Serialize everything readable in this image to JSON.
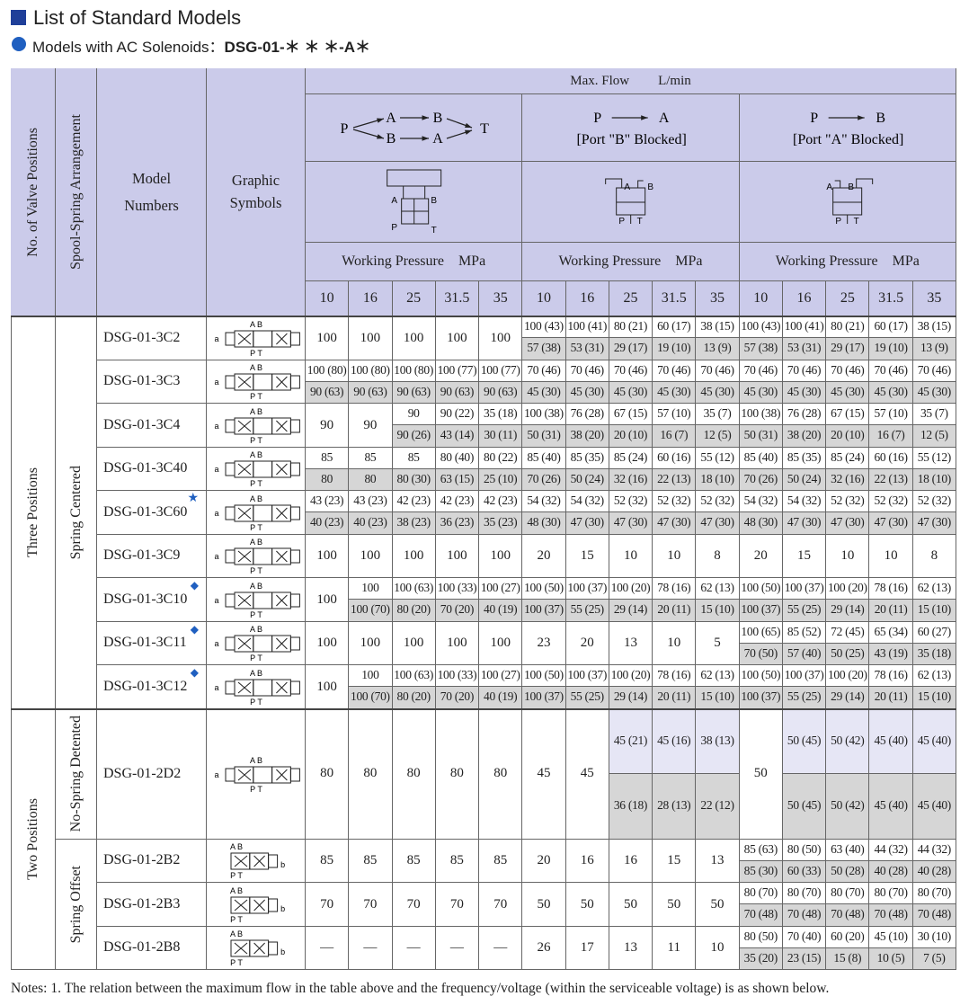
{
  "header": {
    "title": "List of Standard Models",
    "subtitle_prefix": "Models with AC Solenoids：",
    "subtitle_code": "DSG-01-＊ ＊ ＊-A＊"
  },
  "table": {
    "col_headers": {
      "positions": "No. of Valve Positions",
      "spool": "Spool-Spring Arrangement",
      "model": "Model Numbers",
      "graphic": "Graphic Symbols",
      "max_flow": "Max. Flow",
      "unit": "L/min"
    },
    "groups": [
      {
        "flow": [
          "P",
          "A",
          "B",
          "B",
          "A",
          "T"
        ],
        "symbol": [
          "A",
          "B",
          "P",
          "T"
        ],
        "pressure_label": "Working Pressure",
        "pressure_unit": "MPa",
        "pressures": [
          "10",
          "16",
          "25",
          "31.5",
          "35"
        ]
      },
      {
        "flow": [
          "P",
          "A",
          "[Port \"B\" Blocked]"
        ],
        "symbol": [
          "A",
          "B",
          "P",
          "T"
        ],
        "pressure_label": "Working Pressure",
        "pressure_unit": "MPa",
        "pressures": [
          "10",
          "16",
          "25",
          "31.5",
          "35"
        ]
      },
      {
        "flow": [
          "P",
          "B",
          "[Port \"A\" Blocked]"
        ],
        "symbol": [
          "A",
          "B",
          "P",
          "T"
        ],
        "pressure_label": "Working Pressure",
        "pressure_unit": "MPa",
        "pressures": [
          "10",
          "16",
          "25",
          "31.5",
          "35"
        ]
      }
    ],
    "sections": [
      {
        "label": "Three Positions",
        "arrangements": [
          {
            "label": "Spring Centered",
            "rows": [
              {
                "model": "DSG-01-3C2",
                "symbol": [
                  "A B",
                  "P T",
                  "a",
                  "b"
                ],
                "cells": [
                  "100",
                  "100",
                  "100",
                  "100",
                  "100",
                  [
                    "100 (43)",
                    "57 (38)"
                  ],
                  [
                    "100 (41)",
                    "53 (31)"
                  ],
                  [
                    "80 (21)",
                    "29 (17)"
                  ],
                  [
                    "60 (17)",
                    "19 (10)"
                  ],
                  [
                    "38 (15)",
                    "13 (9)"
                  ],
                  [
                    "100 (43)",
                    "57 (38)"
                  ],
                  [
                    "100 (41)",
                    "53 (31)"
                  ],
                  [
                    "80 (21)",
                    "29 (17)"
                  ],
                  [
                    "60 (17)",
                    "19 (10)"
                  ],
                  [
                    "38 (15)",
                    "13 (9)"
                  ]
                ]
              },
              {
                "model": "DSG-01-3C3",
                "symbol": [
                  "A B",
                  "P T",
                  "a",
                  "b"
                ],
                "cells": [
                  [
                    "100 (80)",
                    "90 (63)"
                  ],
                  [
                    "100 (80)",
                    "90 (63)"
                  ],
                  [
                    "100 (80)",
                    "90 (63)"
                  ],
                  [
                    "100 (77)",
                    "90 (63)"
                  ],
                  [
                    "100 (77)",
                    "90 (63)"
                  ],
                  [
                    "70 (46)",
                    "45 (30)"
                  ],
                  [
                    "70 (46)",
                    "45 (30)"
                  ],
                  [
                    "70 (46)",
                    "45 (30)"
                  ],
                  [
                    "70 (46)",
                    "45 (30)"
                  ],
                  [
                    "70 (46)",
                    "45 (30)"
                  ],
                  [
                    "70 (46)",
                    "45 (30)"
                  ],
                  [
                    "70 (46)",
                    "45 (30)"
                  ],
                  [
                    "70 (46)",
                    "45 (30)"
                  ],
                  [
                    "70 (46)",
                    "45 (30)"
                  ],
                  [
                    "70 (46)",
                    "45 (30)"
                  ]
                ]
              },
              {
                "model": "DSG-01-3C4",
                "symbol": [
                  "A B",
                  "P T",
                  "a",
                  "b"
                ],
                "cells": [
                  "90",
                  "90",
                  [
                    "90",
                    "90 (26)"
                  ],
                  [
                    "90 (22)",
                    "43 (14)"
                  ],
                  [
                    "35 (18)",
                    "30 (11)"
                  ],
                  [
                    "100 (38)",
                    "50 (31)"
                  ],
                  [
                    "76 (28)",
                    "38 (20)"
                  ],
                  [
                    "67 (15)",
                    "20 (10)"
                  ],
                  [
                    "57 (10)",
                    "16 (7)"
                  ],
                  [
                    "35 (7)",
                    "12 (5)"
                  ],
                  [
                    "100 (38)",
                    "50 (31)"
                  ],
                  [
                    "76 (28)",
                    "38 (20)"
                  ],
                  [
                    "67 (15)",
                    "20 (10)"
                  ],
                  [
                    "57 (10)",
                    "16 (7)"
                  ],
                  [
                    "35 (7)",
                    "12 (5)"
                  ]
                ]
              },
              {
                "model": "DSG-01-3C40",
                "symbol": [
                  "A B",
                  "P T",
                  "a",
                  "b"
                ],
                "cells": [
                  [
                    "85",
                    "80"
                  ],
                  [
                    "85",
                    "80"
                  ],
                  [
                    "85",
                    "80 (30)"
                  ],
                  [
                    "80 (40)",
                    "63 (15)"
                  ],
                  [
                    "80 (22)",
                    "25 (10)"
                  ],
                  [
                    "85 (40)",
                    "70 (26)"
                  ],
                  [
                    "85 (35)",
                    "50 (24)"
                  ],
                  [
                    "85 (24)",
                    "32 (16)"
                  ],
                  [
                    "60 (16)",
                    "22 (13)"
                  ],
                  [
                    "55 (12)",
                    "18 (10)"
                  ],
                  [
                    "85 (40)",
                    "70 (26)"
                  ],
                  [
                    "85 (35)",
                    "50 (24)"
                  ],
                  [
                    "85 (24)",
                    "32 (16)"
                  ],
                  [
                    "60 (16)",
                    "22 (13)"
                  ],
                  [
                    "55 (12)",
                    "18 (10)"
                  ]
                ]
              },
              {
                "model": "DSG-01-3C60",
                "mark": "★",
                "symbol": [
                  "A B",
                  "P T",
                  "a",
                  "b"
                ],
                "cells": [
                  [
                    "43 (23)",
                    "40 (23)"
                  ],
                  [
                    "43 (23)",
                    "40 (23)"
                  ],
                  [
                    "42 (23)",
                    "38 (23)"
                  ],
                  [
                    "42 (23)",
                    "36 (23)"
                  ],
                  [
                    "42 (23)",
                    "35 (23)"
                  ],
                  [
                    "54 (32)",
                    "48 (30)"
                  ],
                  [
                    "54 (32)",
                    "47 (30)"
                  ],
                  [
                    "52 (32)",
                    "47 (30)"
                  ],
                  [
                    "52 (32)",
                    "47 (30)"
                  ],
                  [
                    "52 (32)",
                    "47 (30)"
                  ],
                  [
                    "54 (32)",
                    "48 (30)"
                  ],
                  [
                    "54 (32)",
                    "47 (30)"
                  ],
                  [
                    "52 (32)",
                    "47 (30)"
                  ],
                  [
                    "52 (32)",
                    "47 (30)"
                  ],
                  [
                    "52 (32)",
                    "47 (30)"
                  ]
                ]
              },
              {
                "model": "DSG-01-3C9",
                "symbol": [
                  "A B",
                  "P T",
                  "a",
                  "b"
                ],
                "cells": [
                  "100",
                  "100",
                  "100",
                  "100",
                  "100",
                  "20",
                  "15",
                  "10",
                  "10",
                  "8",
                  "20",
                  "15",
                  "10",
                  "10",
                  "8"
                ]
              },
              {
                "model": "DSG-01-3C10",
                "mark": "◆",
                "symbol": [
                  "A B",
                  "P T",
                  "a",
                  "b"
                ],
                "cells": [
                  "100",
                  [
                    "100",
                    "100 (70)"
                  ],
                  [
                    "100 (63)",
                    "80 (20)"
                  ],
                  [
                    "100 (33)",
                    "70 (20)"
                  ],
                  [
                    "100 (27)",
                    "40 (19)"
                  ],
                  [
                    "100 (50)",
                    "100 (37)"
                  ],
                  [
                    "100 (37)",
                    "55 (25)"
                  ],
                  [
                    "100 (20)",
                    "29 (14)"
                  ],
                  [
                    "78 (16)",
                    "20 (11)"
                  ],
                  [
                    "62 (13)",
                    "15 (10)"
                  ],
                  [
                    "100 (50)",
                    "100 (37)"
                  ],
                  [
                    "100 (37)",
                    "55 (25)"
                  ],
                  [
                    "100 (20)",
                    "29 (14)"
                  ],
                  [
                    "78 (16)",
                    "20 (11)"
                  ],
                  [
                    "62 (13)",
                    "15 (10)"
                  ]
                ]
              },
              {
                "model": "DSG-01-3C11",
                "mark": "◆",
                "symbol": [
                  "A B",
                  "P T",
                  "a",
                  "b"
                ],
                "cells": [
                  "100",
                  "100",
                  "100",
                  "100",
                  "100",
                  "23",
                  "20",
                  "13",
                  "10",
                  "5",
                  [
                    "100 (65)",
                    "70 (50)"
                  ],
                  [
                    "85 (52)",
                    "57 (40)"
                  ],
                  [
                    "72 (45)",
                    "50 (25)"
                  ],
                  [
                    "65 (34)",
                    "43 (19)"
                  ],
                  [
                    "60 (27)",
                    "35 (18)"
                  ]
                ]
              },
              {
                "model": "DSG-01-3C12",
                "mark": "◆",
                "symbol": [
                  "A B",
                  "P T",
                  "a",
                  "b"
                ],
                "cells": [
                  "100",
                  [
                    "100",
                    "100 (70)"
                  ],
                  [
                    "100 (63)",
                    "80 (20)"
                  ],
                  [
                    "100 (33)",
                    "70 (20)"
                  ],
                  [
                    "100 (27)",
                    "40 (19)"
                  ],
                  [
                    "100 (50)",
                    "100 (37)"
                  ],
                  [
                    "100 (37)",
                    "55 (25)"
                  ],
                  [
                    "100 (20)",
                    "29 (14)"
                  ],
                  [
                    "78 (16)",
                    "20 (11)"
                  ],
                  [
                    "62 (13)",
                    "15 (10)"
                  ],
                  [
                    "100 (50)",
                    "100 (37)"
                  ],
                  [
                    "100 (37)",
                    "55 (25)"
                  ],
                  [
                    "100 (20)",
                    "29 (14)"
                  ],
                  [
                    "78 (16)",
                    "20 (11)"
                  ],
                  [
                    "62 (13)",
                    "15 (10)"
                  ]
                ]
              }
            ]
          }
        ]
      },
      {
        "label": "Two Positions",
        "arrangements": [
          {
            "label": "No-Spring Detented",
            "rows": [
              {
                "model": "DSG-01-2D2",
                "symbol": [
                  "A B",
                  "P T",
                  "a",
                  "b"
                ],
                "cells": [
                  "80",
                  "80",
                  "80",
                  "80",
                  "80",
                  "45",
                  "45",
                  [
                    "45 (21)",
                    "36 (18)"
                  ],
                  [
                    "45 (16)",
                    "28 (13)"
                  ],
                  [
                    "38 (13)",
                    "22 (12)"
                  ],
                  "50",
                  [
                    "50 (45)",
                    "50 (45)"
                  ],
                  [
                    "50 (42)",
                    "50 (42)"
                  ],
                  [
                    "45 (40)",
                    "45 (40)"
                  ],
                  [
                    "45 (40)",
                    "45 (40)"
                  ]
                ]
              }
            ]
          },
          {
            "label": "Spring Offset",
            "rows": [
              {
                "model": "DSG-01-2B2",
                "symbol": [
                  "A B",
                  "P T",
                  "b"
                ],
                "cells": [
                  "85",
                  "85",
                  "85",
                  "85",
                  "85",
                  "20",
                  "16",
                  "16",
                  "15",
                  "13",
                  [
                    "85 (63)",
                    "85 (30)"
                  ],
                  [
                    "80 (50)",
                    "60 (33)"
                  ],
                  [
                    "63 (40)",
                    "50 (28)"
                  ],
                  [
                    "44 (32)",
                    "40 (28)"
                  ],
                  [
                    "44 (32)",
                    "40 (28)"
                  ]
                ]
              },
              {
                "model": "DSG-01-2B3",
                "symbol": [
                  "A B",
                  "P T",
                  "b"
                ],
                "cells": [
                  "70",
                  "70",
                  "70",
                  "70",
                  "70",
                  "50",
                  "50",
                  "50",
                  "50",
                  "50",
                  [
                    "80 (70)",
                    "70 (48)"
                  ],
                  [
                    "80 (70)",
                    "70 (48)"
                  ],
                  [
                    "80 (70)",
                    "70 (48)"
                  ],
                  [
                    "80 (70)",
                    "70 (48)"
                  ],
                  [
                    "80 (70)",
                    "70 (48)"
                  ]
                ]
              },
              {
                "model": "DSG-01-2B8",
                "symbol": [
                  "A B",
                  "P T",
                  "b"
                ],
                "cells": [
                  "—",
                  "—",
                  "—",
                  "—",
                  "—",
                  "26",
                  "17",
                  "13",
                  "11",
                  "10",
                  [
                    "80 (50)",
                    "35 (20)"
                  ],
                  [
                    "70 (40)",
                    "23 (15)"
                  ],
                  [
                    "60 (20)",
                    "15 (8)"
                  ],
                  [
                    "45 (10)",
                    "10 (5)"
                  ],
                  [
                    "30 (10)",
                    "7 (5)"
                  ]
                ]
              }
            ]
          }
        ]
      }
    ]
  },
  "notes": "Notes: 1. The relation between the maximum flow in the table above and the frequency/voltage (within the serviceable voltage) is as shown below."
}
